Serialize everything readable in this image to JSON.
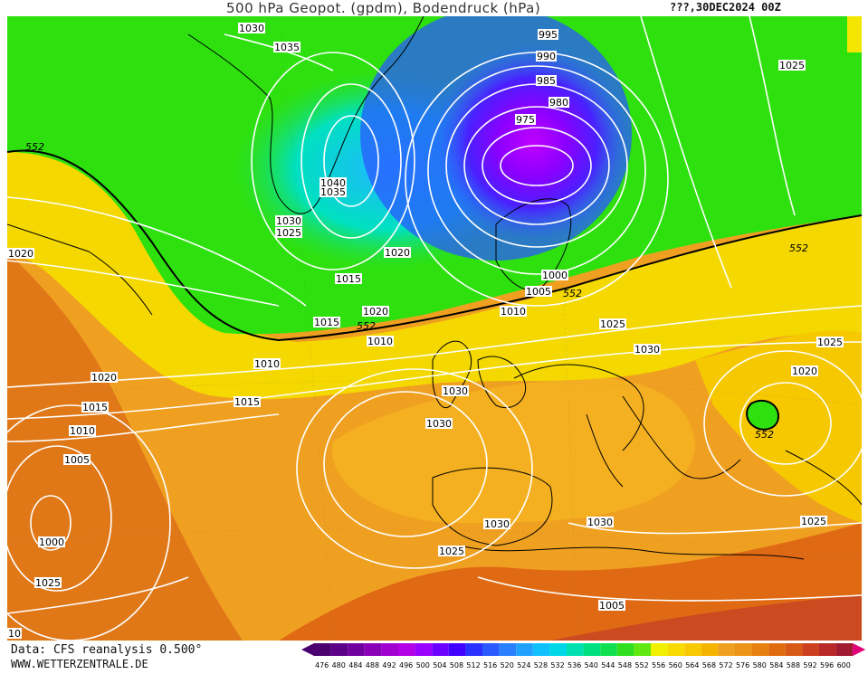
{
  "header": {
    "title": "500 hPa Geopot. (gpdm), Bodendruck (hPa)",
    "date": "???,30DEC2024 00Z"
  },
  "footer": {
    "source": "Data: CFS reanalysis 0.500°",
    "site": "WWW.WETTERZENTRALE.DE"
  },
  "colors": {
    "green": "#2ee00e",
    "yellow": "#f2e600",
    "orange": "#f0a020",
    "dark_orange": "#e07010",
    "blue": "#2266ff",
    "purple": "#8800ff",
    "isobar": "#ffffff"
  },
  "isobar_labels": [
    {
      "text": "1030"
    },
    {
      "text": "1035"
    },
    {
      "text": "995"
    },
    {
      "text": "990"
    },
    {
      "text": "985"
    },
    {
      "text": "980"
    },
    {
      "text": "975"
    },
    {
      "text": "1025"
    },
    {
      "text": "1040"
    },
    {
      "text": "1035"
    },
    {
      "text": "1030"
    },
    {
      "text": "1025"
    },
    {
      "text": "1020"
    },
    {
      "text": "1015"
    },
    {
      "text": "1020"
    },
    {
      "text": "1020"
    },
    {
      "text": "1000"
    },
    {
      "text": "1005"
    },
    {
      "text": "1010"
    },
    {
      "text": "1015"
    },
    {
      "text": "1010"
    },
    {
      "text": "1010"
    },
    {
      "text": "1025"
    },
    {
      "text": "1030"
    },
    {
      "text": "1025"
    },
    {
      "text": "1020"
    },
    {
      "text": "1020"
    },
    {
      "text": "1015"
    },
    {
      "text": "1015"
    },
    {
      "text": "1030"
    },
    {
      "text": "1030"
    },
    {
      "text": "1010"
    },
    {
      "text": "1005"
    },
    {
      "text": "1000"
    },
    {
      "text": "1030"
    },
    {
      "text": "1030"
    },
    {
      "text": "1025"
    },
    {
      "text": "1025"
    },
    {
      "text": "1005"
    },
    {
      "text": "1025"
    },
    {
      "text": "10"
    }
  ],
  "geopotential_labels": [
    {
      "text": "552"
    },
    {
      "text": "552"
    },
    {
      "text": "552"
    },
    {
      "text": "552"
    },
    {
      "text": "552"
    }
  ],
  "colorbar": {
    "ticks": [
      "476",
      "480",
      "484",
      "488",
      "492",
      "496",
      "500",
      "504",
      "508",
      "512",
      "516",
      "520",
      "524",
      "528",
      "532",
      "536",
      "540",
      "544",
      "548",
      "552",
      "556",
      "560",
      "564",
      "568",
      "572",
      "576",
      "580",
      "584",
      "588",
      "592",
      "596",
      "600"
    ],
    "colors": [
      "#4b0070",
      "#5c0088",
      "#7000a0",
      "#8a00b8",
      "#a000d0",
      "#b400e6",
      "#9900ff",
      "#6a00ff",
      "#4000ff",
      "#2a30ff",
      "#2a5aff",
      "#2a80ff",
      "#20a0ff",
      "#10c0ff",
      "#00d8e8",
      "#00e0b0",
      "#00e080",
      "#10e050",
      "#30e020",
      "#60e810",
      "#f0f000",
      "#f8dc00",
      "#f8c800",
      "#f4b400",
      "#f0a020",
      "#ec9418",
      "#e88010",
      "#e06a10",
      "#d85818",
      "#cc4020",
      "#b82828",
      "#a01a30"
    ]
  }
}
